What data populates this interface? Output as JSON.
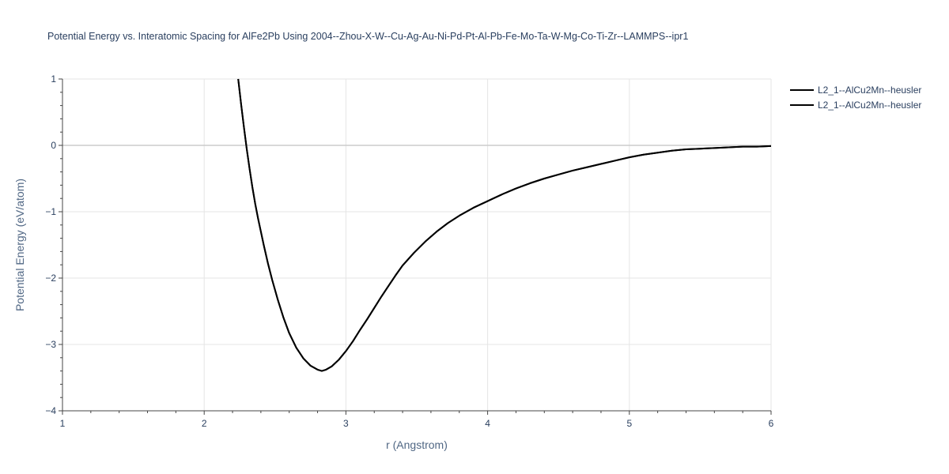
{
  "chart_data": {
    "type": "line",
    "title": "Potential Energy vs. Interatomic Spacing for AlFe2Pb Using 2004--Zhou-X-W--Cu-Ag-Au-Ni-Pd-Pt-Al-Pb-Fe-Mo-Ta-W-Mg-Co-Ti-Zr--LAMMPS--ipr1",
    "xlabel": "r (Angstrom)",
    "ylabel": "Potential Energy (eV/atom)",
    "xlim": [
      1,
      6
    ],
    "ylim": [
      -4,
      1
    ],
    "x_ticks": [
      1,
      2,
      3,
      4,
      5,
      6
    ],
    "y_ticks": [
      1,
      0,
      -1,
      -2,
      -3,
      -4
    ],
    "x_tick_labels": [
      "1",
      "2",
      "3",
      "4",
      "5",
      "6"
    ],
    "y_tick_labels": [
      "1",
      "0",
      "−1",
      "−2",
      "−3",
      "−4"
    ],
    "grid": true,
    "legend_position": "top-right",
    "line_color": "#000000",
    "series": [
      {
        "name": "L2_1--AlCu2Mn--heusler",
        "x": [
          2.24,
          2.26,
          2.28,
          2.3,
          2.32,
          2.34,
          2.36,
          2.38,
          2.4,
          2.42,
          2.45,
          2.48,
          2.52,
          2.56,
          2.6,
          2.65,
          2.7,
          2.75,
          2.8,
          2.83,
          2.86,
          2.9,
          2.95,
          3.0,
          3.05,
          3.1,
          3.15,
          3.2,
          3.25,
          3.3,
          3.35,
          3.4,
          3.48,
          3.56,
          3.64,
          3.72,
          3.8,
          3.9,
          4.0,
          4.1,
          4.2,
          4.3,
          4.4,
          4.5,
          4.6,
          4.7,
          4.8,
          4.9,
          5.0,
          5.1,
          5.2,
          5.3,
          5.4,
          5.5,
          5.6,
          5.7,
          5.8,
          5.9,
          6.0
        ],
        "y": [
          1.0,
          0.63,
          0.28,
          -0.05,
          -0.35,
          -0.63,
          -0.88,
          -1.1,
          -1.3,
          -1.5,
          -1.78,
          -2.03,
          -2.33,
          -2.6,
          -2.83,
          -3.05,
          -3.21,
          -3.32,
          -3.38,
          -3.4,
          -3.38,
          -3.33,
          -3.23,
          -3.1,
          -2.95,
          -2.78,
          -2.62,
          -2.45,
          -2.28,
          -2.12,
          -1.96,
          -1.81,
          -1.62,
          -1.45,
          -1.3,
          -1.17,
          -1.06,
          -0.94,
          -0.84,
          -0.74,
          -0.65,
          -0.57,
          -0.5,
          -0.44,
          -0.38,
          -0.33,
          -0.28,
          -0.23,
          -0.18,
          -0.14,
          -0.11,
          -0.08,
          -0.06,
          -0.05,
          -0.04,
          -0.03,
          -0.02,
          -0.02,
          -0.01
        ]
      },
      {
        "name": "L2_1--AlCu2Mn--heusler",
        "x": [
          2.24,
          2.26,
          2.28,
          2.3,
          2.32,
          2.34,
          2.36,
          2.38,
          2.4,
          2.42,
          2.45,
          2.48,
          2.52,
          2.56,
          2.6,
          2.65,
          2.7,
          2.75,
          2.8,
          2.83,
          2.86,
          2.9,
          2.95,
          3.0,
          3.05,
          3.1,
          3.15,
          3.2,
          3.25,
          3.3,
          3.35,
          3.4,
          3.48,
          3.56,
          3.64,
          3.72,
          3.8,
          3.9,
          4.0,
          4.1,
          4.2,
          4.3,
          4.4,
          4.5,
          4.6,
          4.7,
          4.8,
          4.9,
          5.0,
          5.1,
          5.2,
          5.3,
          5.4,
          5.5,
          5.6,
          5.7,
          5.8,
          5.9,
          6.0
        ],
        "y": [
          1.0,
          0.63,
          0.28,
          -0.05,
          -0.35,
          -0.63,
          -0.88,
          -1.1,
          -1.3,
          -1.5,
          -1.78,
          -2.03,
          -2.33,
          -2.6,
          -2.83,
          -3.05,
          -3.21,
          -3.32,
          -3.38,
          -3.4,
          -3.38,
          -3.33,
          -3.23,
          -3.1,
          -2.95,
          -2.78,
          -2.62,
          -2.45,
          -2.28,
          -2.12,
          -1.96,
          -1.81,
          -1.62,
          -1.45,
          -1.3,
          -1.17,
          -1.06,
          -0.94,
          -0.84,
          -0.74,
          -0.65,
          -0.57,
          -0.5,
          -0.44,
          -0.38,
          -0.33,
          -0.28,
          -0.23,
          -0.18,
          -0.14,
          -0.11,
          -0.08,
          -0.06,
          -0.05,
          -0.04,
          -0.03,
          -0.02,
          -0.02,
          -0.01
        ]
      }
    ]
  }
}
